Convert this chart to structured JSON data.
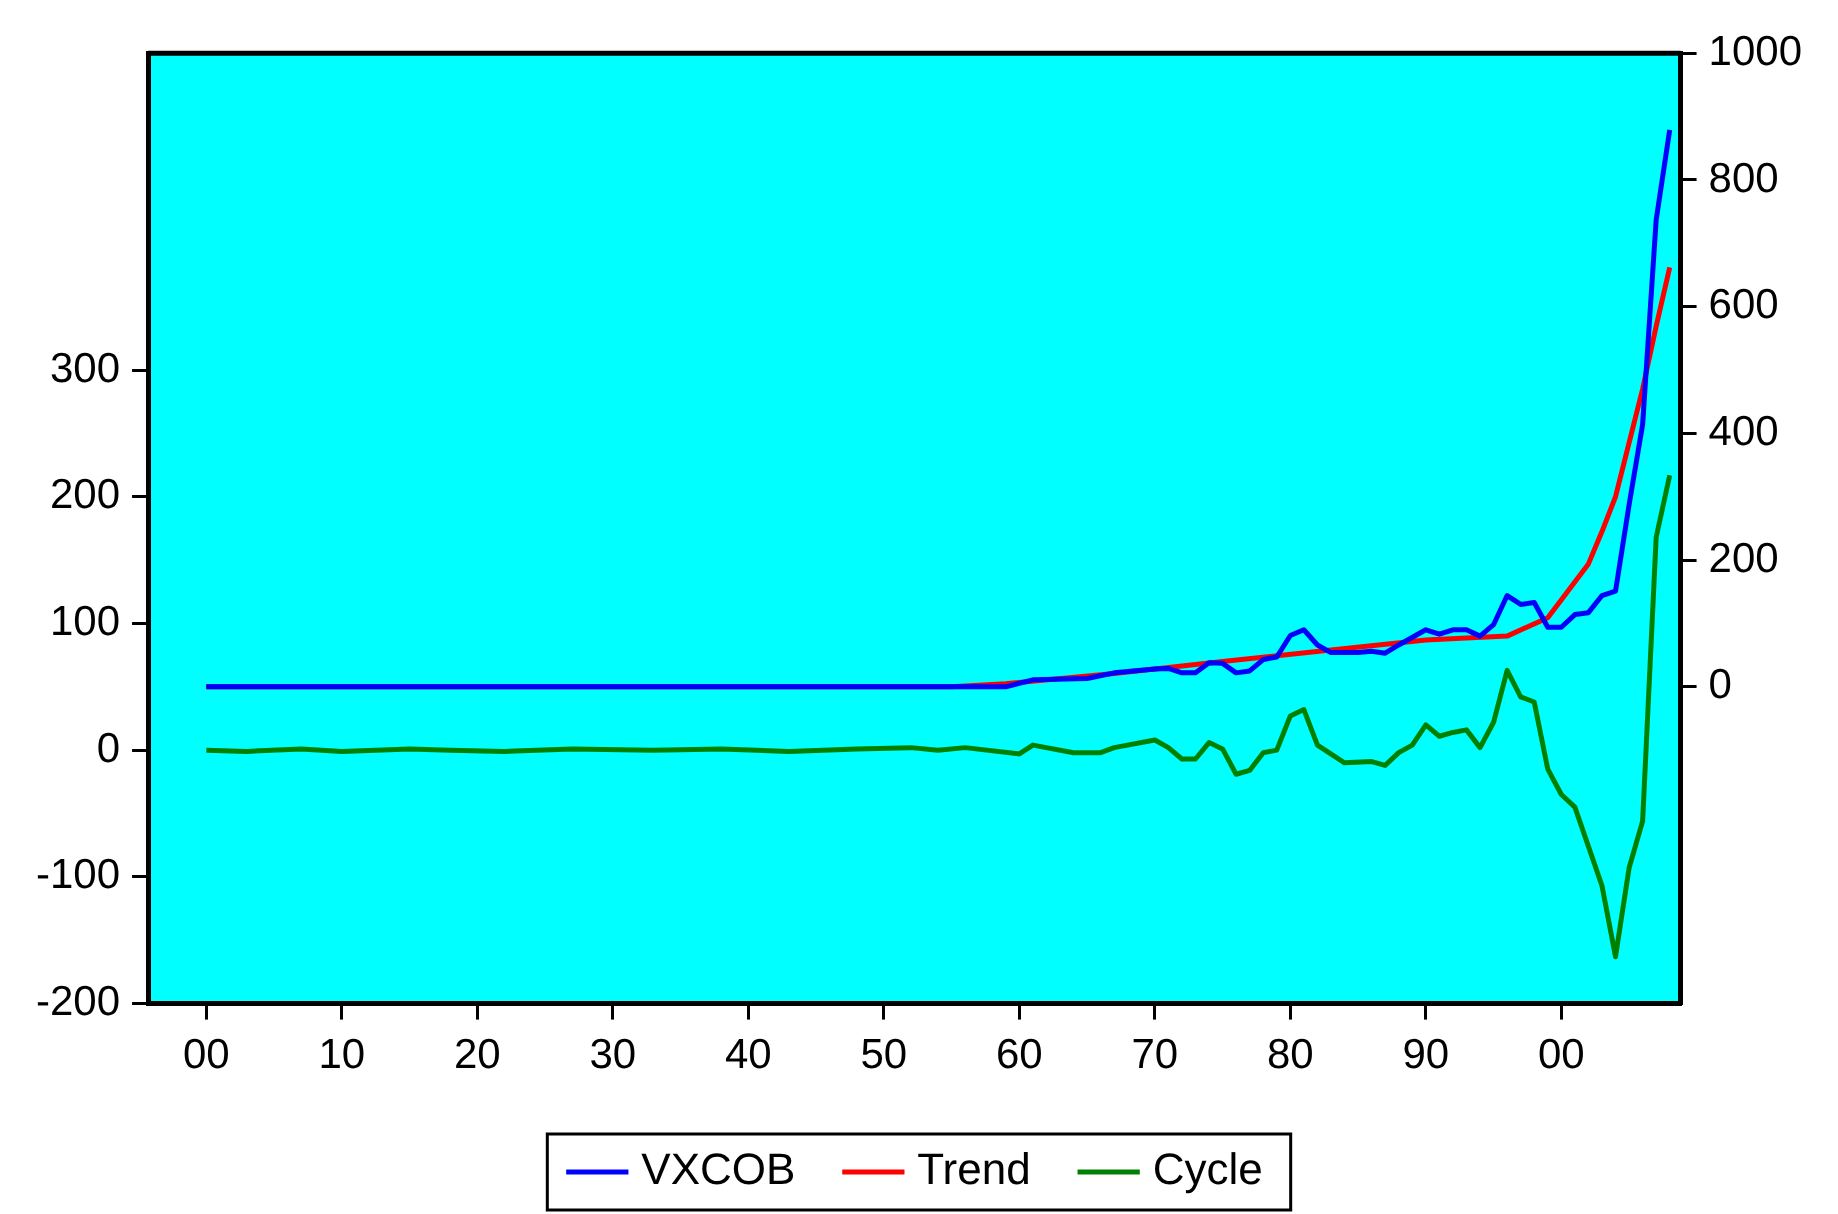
{
  "chart_data": {
    "type": "line",
    "xlim": [
      1895.7,
      2008.8
    ],
    "xticks": [
      {
        "value": 1900,
        "label": "00"
      },
      {
        "value": 1910,
        "label": "10"
      },
      {
        "value": 1920,
        "label": "20"
      },
      {
        "value": 1930,
        "label": "30"
      },
      {
        "value": 1940,
        "label": "40"
      },
      {
        "value": 1950,
        "label": "50"
      },
      {
        "value": 1960,
        "label": "60"
      },
      {
        "value": 1970,
        "label": "70"
      },
      {
        "value": 1980,
        "label": "80"
      },
      {
        "value": 1990,
        "label": "90"
      },
      {
        "value": 2000,
        "label": "00"
      }
    ],
    "ylim": [
      -200,
      550
    ],
    "yticks": [
      -200,
      -100,
      0,
      100,
      200,
      300
    ],
    "y2lim": [
      -500,
      1000
    ],
    "y2ticks": [
      0,
      200,
      400,
      600,
      800,
      1000
    ],
    "grid": false,
    "legend": "bottom",
    "marker": "none",
    "line_style": "solid",
    "series": [
      {
        "name": "VXCOB",
        "color": "#0000ff",
        "axis": "y2",
        "x": [
          1900,
          1952,
          1959,
          1961,
          1965,
          1967,
          1970,
          1971,
          1972,
          1973,
          1974,
          1975,
          1976,
          1977,
          1978,
          1979,
          1980,
          1981,
          1982,
          1983,
          1985,
          1986,
          1987,
          1988,
          1990,
          1991,
          1992,
          1993,
          1994,
          1995,
          1996,
          1997,
          1998,
          1999,
          2000,
          2001,
          2002,
          2003,
          2004,
          2005,
          2006,
          2007,
          2008
        ],
        "values": [
          0,
          0,
          0,
          11,
          13,
          22,
          28,
          29,
          22,
          22,
          38,
          37,
          22,
          25,
          43,
          47,
          81,
          90,
          66,
          54,
          54,
          56,
          53,
          66,
          90,
          83,
          90,
          90,
          80,
          98,
          144,
          130,
          133,
          94,
          94,
          114,
          117,
          144,
          151,
          287,
          414,
          737,
          879
        ]
      },
      {
        "name": "Trend",
        "color": "#ff0000",
        "axis": "y2",
        "x": [
          1900,
          1955,
          1959,
          1967,
          1975,
          1983,
          1990,
          1996,
          1999,
          2002,
          2003,
          2004,
          2005,
          2006,
          2007,
          2008
        ],
        "values": [
          0,
          0,
          5,
          21,
          40,
          58,
          74,
          80,
          109,
          194,
          245,
          300,
          385,
          470,
          569,
          662
        ]
      },
      {
        "name": "Cycle",
        "color": "#008000",
        "axis": "y",
        "x": [
          1900,
          1903,
          1907,
          1910,
          1915,
          1918,
          1922,
          1927,
          1933,
          1938,
          1943,
          1948,
          1952,
          1954,
          1956,
          1960,
          1961,
          1964,
          1966,
          1967,
          1970,
          1971,
          1972,
          1973,
          1974,
          1975,
          1976,
          1977,
          1978,
          1979,
          1980,
          1981,
          1982,
          1984,
          1986,
          1987,
          1988,
          1989,
          1990,
          1991,
          1992,
          1993,
          1994,
          1995,
          1996,
          1997,
          1998,
          1999,
          2000,
          2001,
          2003,
          2004,
          2005,
          2006,
          2007,
          2008
        ],
        "values": [
          0,
          -1,
          1,
          -1,
          1,
          0,
          -1,
          1,
          0,
          1,
          -1,
          1,
          2,
          0,
          2,
          -3,
          4,
          -2,
          -2,
          2,
          8,
          2,
          -7,
          -7,
          6,
          1,
          -19,
          -16,
          -2,
          0,
          27,
          32,
          4,
          -10,
          -9,
          -12,
          -2,
          4,
          20,
          11,
          14,
          16,
          2,
          22,
          63,
          42,
          38,
          -15,
          -35,
          -45,
          -107,
          -163,
          -93,
          -56,
          168,
          217
        ]
      }
    ]
  }
}
